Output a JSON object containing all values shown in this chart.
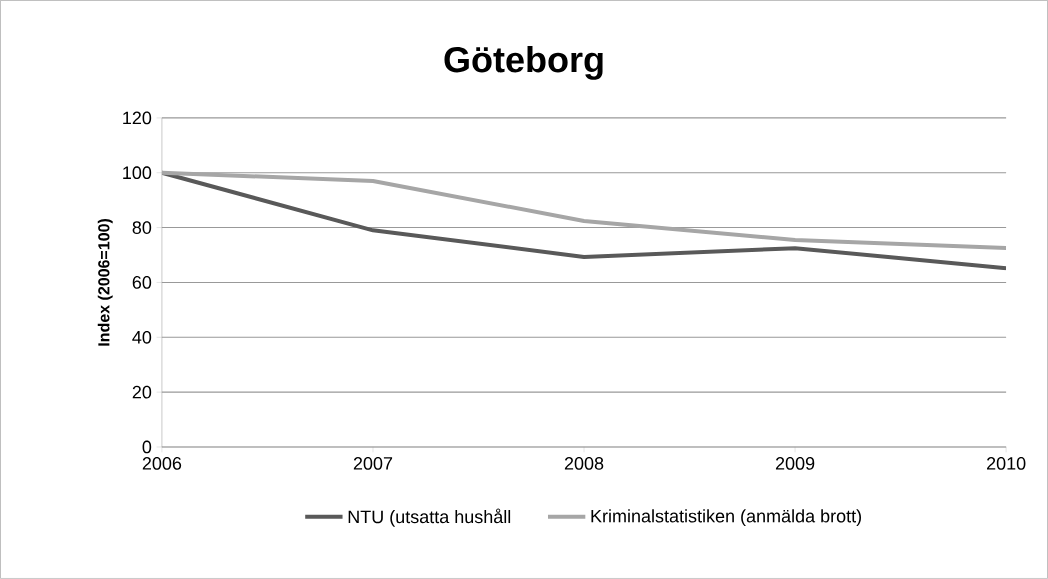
{
  "chart_data": {
    "type": "line",
    "title": "Göteborg",
    "ylabel": "Index (2006=100)",
    "categories": [
      "2006",
      "2007",
      "2008",
      "2009",
      "2010"
    ],
    "series": [
      {
        "name": "NTU (utsatta hushåll",
        "color": "#595959",
        "values": [
          100,
          79,
          69.3,
          72.5,
          65.2
        ]
      },
      {
        "name": "Kriminalstatistiken (anmälda brott)",
        "color": "#a6a6a6",
        "values": [
          100,
          97,
          82.4,
          75.5,
          72.6
        ]
      }
    ],
    "ylim": [
      0,
      120
    ],
    "yticks": [
      0,
      20,
      40,
      60,
      80,
      100,
      120
    ],
    "grid": "y",
    "legend": "bottom",
    "marker": "none",
    "line_style": "solid"
  }
}
